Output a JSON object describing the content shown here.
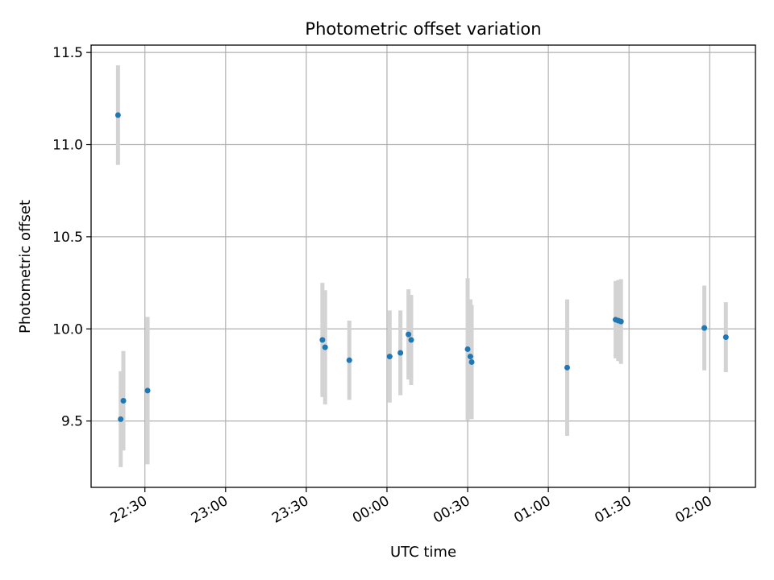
{
  "chart_data": {
    "type": "scatter",
    "title": "Photometric offset variation",
    "xlabel": "UTC time",
    "ylabel": "Photometric offset",
    "grid": true,
    "xlim": [
      "22:10",
      "02:17"
    ],
    "ylim": [
      9.14,
      11.54
    ],
    "x_ticks": [
      "22:30",
      "23:00",
      "23:30",
      "00:00",
      "00:30",
      "01:00",
      "01:30",
      "02:00"
    ],
    "y_ticks": [
      9.5,
      10.0,
      10.5,
      11.0,
      11.5
    ],
    "y_tick_labels": [
      "9.5",
      "10.0",
      "10.5",
      "11.0",
      "11.5"
    ],
    "colors": {
      "point": "#1f77b4",
      "errorbar": "#d3d3d3",
      "grid": "#b0b0b0"
    },
    "series": [
      {
        "points": [
          {
            "time": "22:20",
            "y": 11.16,
            "err": 0.27
          },
          {
            "time": "22:21",
            "y": 9.51,
            "err": 0.26
          },
          {
            "time": "22:22",
            "y": 9.61,
            "err": 0.27
          },
          {
            "time": "22:31",
            "y": 9.665,
            "err": 0.4
          },
          {
            "time": "23:36",
            "y": 9.94,
            "err": 0.31
          },
          {
            "time": "23:37",
            "y": 9.9,
            "err": 0.31
          },
          {
            "time": "23:46",
            "y": 9.83,
            "err": 0.215
          },
          {
            "time": "00:01",
            "y": 9.85,
            "err": 0.25
          },
          {
            "time": "00:05",
            "y": 9.87,
            "err": 0.23
          },
          {
            "time": "00:08",
            "y": 9.97,
            "err": 0.245
          },
          {
            "time": "00:09",
            "y": 9.94,
            "err": 0.245
          },
          {
            "time": "00:30",
            "y": 9.89,
            "err": 0.385
          },
          {
            "time": "00:31",
            "y": 9.85,
            "err": 0.31
          },
          {
            "time": "00:31:30",
            "y": 9.82,
            "err": 0.31
          },
          {
            "time": "01:07",
            "y": 9.79,
            "err": 0.37
          },
          {
            "time": "01:25",
            "y": 10.05,
            "err": 0.21
          },
          {
            "time": "01:26",
            "y": 10.045,
            "err": 0.22
          },
          {
            "time": "01:27",
            "y": 10.04,
            "err": 0.23
          },
          {
            "time": "01:58",
            "y": 10.005,
            "err": 0.23
          },
          {
            "time": "02:06",
            "y": 9.955,
            "err": 0.19
          }
        ]
      }
    ]
  }
}
